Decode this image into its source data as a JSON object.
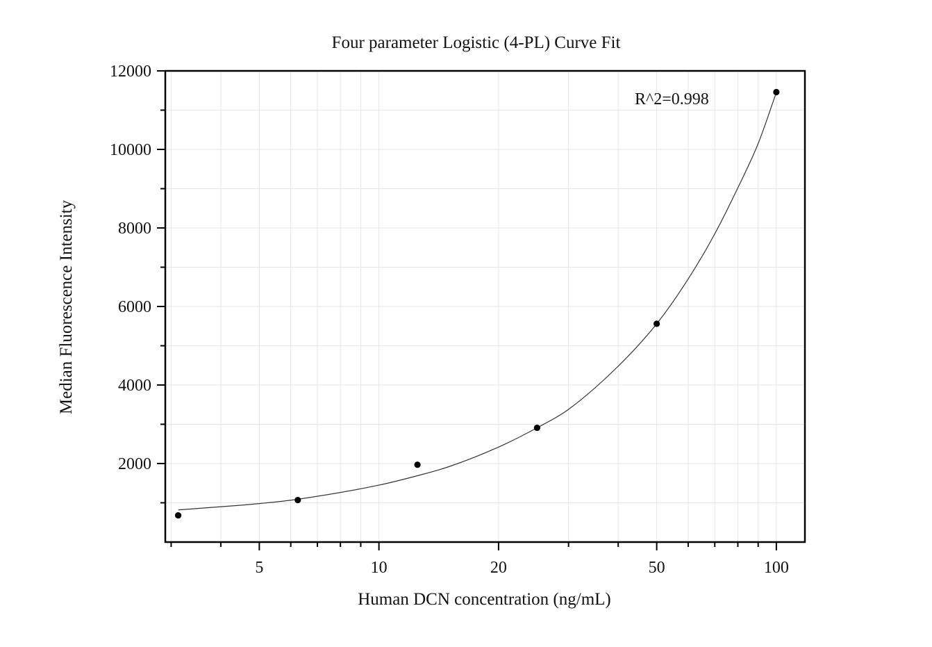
{
  "chart_data": {
    "type": "scatter",
    "title": "Four parameter Logistic (4-PL) Curve Fit",
    "xlabel": "Human DCN concentration (ng/mL)",
    "ylabel": "Median Fluorescence Intensity",
    "x_scale": "log",
    "xlim": [
      2.9,
      118
    ],
    "ylim": [
      0,
      12000
    ],
    "y_ticks": [
      2000,
      4000,
      6000,
      8000,
      10000,
      12000
    ],
    "x_ticks": [
      5,
      10,
      20,
      50,
      100
    ],
    "grid": true,
    "annotation": "R^2=0.998",
    "points": {
      "x": [
        3.125,
        6.25,
        12.5,
        25,
        50,
        100
      ],
      "y": [
        680,
        1070,
        1970,
        2910,
        5560,
        11460
      ]
    },
    "fit_curve": {
      "x": [
        3.125,
        5,
        6.25,
        10,
        12.5,
        15,
        20,
        25,
        30,
        40,
        50,
        60,
        70,
        80,
        90,
        100
      ],
      "y": [
        820,
        980,
        1090,
        1450,
        1690,
        1920,
        2420,
        2910,
        3380,
        4480,
        5560,
        6700,
        7850,
        9020,
        10150,
        11450
      ]
    },
    "colors": {
      "points": "#000000",
      "curve": "#333333",
      "grid": "#e6e6e6",
      "frame": "#000000"
    }
  }
}
